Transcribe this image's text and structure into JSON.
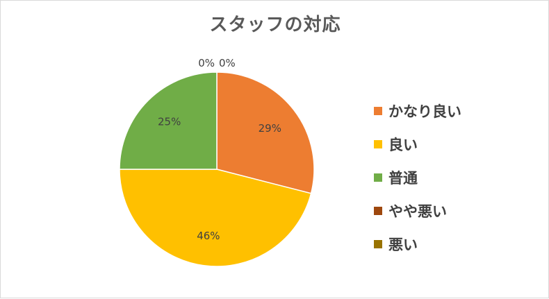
{
  "chart_data": {
    "type": "pie",
    "title": "スタッフの対応",
    "categories": [
      "かなり良い",
      "良い",
      "普通",
      "やや悪い",
      "悪い"
    ],
    "values": [
      29,
      46,
      25,
      0,
      0
    ],
    "data_labels": [
      "29%",
      "46%",
      "25%",
      "0%",
      "0%"
    ],
    "colors": [
      "#ED7D31",
      "#FFC000",
      "#70AD47",
      "#9E480E",
      "#997300"
    ],
    "legend": "right",
    "start_angle": "top-clockwise"
  }
}
